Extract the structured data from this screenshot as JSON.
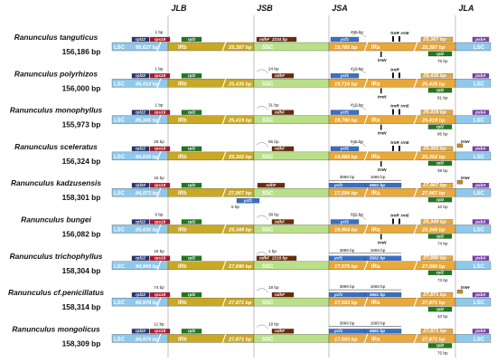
{
  "colors": {
    "lsc": "#90c8ea",
    "irb": "#c9a825",
    "ssc": "#b9e088",
    "ira": "#e8a83a",
    "rpl22": "#23387a",
    "rps19": "#b0162a",
    "rpl2": "#1d7a1d",
    "ndhF": "#6b2b06",
    "ycf1": "#3870c8",
    "psbA": "#7a3fb0",
    "trnH": "#c28a2c",
    "rps19_jla": "#5a6e1a"
  },
  "junctions": [
    "JLB",
    "JSB",
    "JSA",
    "JLA"
  ],
  "rows": [
    {
      "species": "Ranunculus tanguticus",
      "size": "156,186 bp",
      "lsc_bp": "85,627 bp",
      "irb_bp": "",
      "ssc_bp": "25,387 bp",
      "ssc_len": "",
      "ira_bp": "19,785 bp",
      "ira_len": "25,387 bp",
      "ann": {
        "jlb": "1 bp",
        "jsb_ndhF": "2234 bp",
        "jsa": "456 bp",
        "jla": "76 bp",
        "trn": [
          "trnR",
          "rrn5",
          "trnN"
        ]
      }
    },
    {
      "species": "Ranunculus polyrhizos",
      "size": "156,000 bp",
      "lsc_bp": "85,414 bp",
      "ssc_bp": "25,435 bp",
      "ira_bp": "19,716 bp",
      "ira_len": "25,435 bp",
      "ann": {
        "jlb": "1 bp",
        "jsb": "24 bp",
        "jsa": "419 bp",
        "jla": "81 bp",
        "trn": [
          "trnR",
          "trnN"
        ]
      }
    },
    {
      "species": "Ranunculus monophyllus",
      "size": "155,973 bp",
      "lsc_bp": "85,345 bp",
      "ssc_bp": "25,419 bp",
      "ira_bp": "19,790 bp",
      "ira_len": "25,419 bp",
      "ann": {
        "jlb": "1 bp",
        "jsb": "31 bp",
        "jsa": "419 bp",
        "jla": "85 bp",
        "trn": [
          "trnR",
          "rrn5",
          "trnN"
        ]
      }
    },
    {
      "species": "Ranunculus sceleratus",
      "size": "156,324 bp",
      "lsc_bp": "85,835 bp",
      "ssc_bp": "25,302 bp",
      "ira_bp": "19,885 bp",
      "ira_len": "25,302 bp",
      "ann": {
        "jlb": "29 bp",
        "jsb": "55 bp",
        "jsa": "546 bp",
        "jla": "39 bp",
        "trn": [
          "trnR",
          "rrn5",
          "trnN",
          "trnH"
        ]
      }
    },
    {
      "species": "Ranunculus kadzusensis",
      "size": "158,301 bp",
      "lsc_bp": "84,973 bp",
      "ssc_bp": "27,867 bp",
      "ira_bp": "17,594 bp",
      "ira_len": "27,867 bp",
      "ann": {
        "jlb": "15 bp",
        "jsb": "5 bp",
        "jsa1": "3896 bp",
        "jsa2": "1666 bp",
        "jsa3": "5561 bp",
        "jla": "10 bp",
        "trn": [
          "trnH"
        ]
      }
    },
    {
      "species": "Ranunculus bungei",
      "size": "156,082 bp",
      "lsc_bp": "85,430 bp",
      "ssc_bp": "25,349 bp",
      "ira_bp": "19,954 bp",
      "ira_len": "25,349 bp",
      "ann": {
        "jlb": "6 bp",
        "jsb": "38 bp",
        "jsa": "682 bp",
        "jla": "74 bp",
        "trn": [
          "trnR",
          "rrn5",
          "trnN"
        ]
      }
    },
    {
      "species": "Ranunculus trichophyllus",
      "size": "158,304 bp",
      "lsc_bp": "84,949 bp",
      "ssc_bp": "27,890 bp",
      "ira_bp": "17,575 bp",
      "ira_len": "27,890 bp",
      "ann": {
        "jlb": "15 bp",
        "jsb": "1 bp",
        "jsb_ndhF": "2219 bp",
        "jsa1": "3896 bp",
        "jsa2": "1666 bp",
        "jsa3": "5561 bp",
        "jla": "73 bp"
      }
    },
    {
      "species": "Ranunculus cf.penicillatus",
      "size": "158,314 bp",
      "lsc_bp": "84,979 bp",
      "ssc_bp": "27,871 bp",
      "ira_bp": "17,593 bp",
      "ira_len": "27,871 bp",
      "ann": {
        "jlb": "74 bp",
        "jsb": "19 bp",
        "jsa1": "3896 bp",
        "jsa2": "1666 bp",
        "jsa3": "5561 bp",
        "jla": "10 bp",
        "trn": [
          "trnH"
        ]
      }
    },
    {
      "species": "Ranunculus mongolicus",
      "size": "158,309 bp",
      "lsc_bp": "84,974 bp",
      "ssc_bp": "27,871 bp",
      "ira_bp": "17,593 bp",
      "ira_len": "27,871 bp",
      "ann": {
        "jlb": "11 bp",
        "jsb": "19 bp",
        "jsa1": "3896 bp",
        "jsa2": "1666 bp",
        "jsa3": "5561 bp",
        "jla": "75 bp"
      }
    }
  ],
  "labels": {
    "lsc": "LSC",
    "irb": "IRb",
    "ssc": "SSC",
    "ira": "IRa",
    "rpl22": "rpl22",
    "rps19": "rps19",
    "rpl2": "rpl2",
    "ndhF": "ndhF",
    "ycf1": "ycf1",
    "psbA": "psbA",
    "trnH": "trnH"
  }
}
